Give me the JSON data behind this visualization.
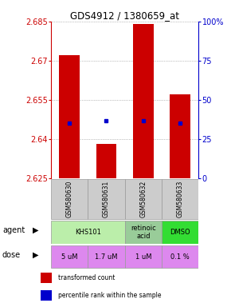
{
  "title": "GDS4912 / 1380659_at",
  "samples": [
    "GSM580630",
    "GSM580631",
    "GSM580632",
    "GSM580633"
  ],
  "bar_values": [
    2.672,
    2.638,
    2.684,
    2.657
  ],
  "bar_base": 2.625,
  "percentile_values": [
    2.646,
    2.647,
    2.647,
    2.646
  ],
  "ylim_left": [
    2.625,
    2.685
  ],
  "yticks_left": [
    2.625,
    2.64,
    2.655,
    2.67,
    2.685
  ],
  "yticks_right": [
    0,
    25,
    50,
    75,
    100
  ],
  "ytick_labels_left": [
    "2.625",
    "2.64",
    "2.655",
    "2.67",
    "2.685"
  ],
  "ytick_labels_right": [
    "0",
    "25",
    "50",
    "75",
    "100%"
  ],
  "bar_color": "#cc0000",
  "dot_color": "#0000cc",
  "dose_labels": [
    "5 uM",
    "1.7 uM",
    "1 uM",
    "0.1 %"
  ],
  "dose_color": "#dd88ee",
  "sample_bg_color": "#cccccc",
  "legend_red_label": "transformed count",
  "legend_blue_label": "percentile rank within the sample",
  "left_axis_color": "#cc0000",
  "right_axis_color": "#0000cc",
  "grid_color": "#888888",
  "agent_merged_label": "KHS101",
  "agent_merged_color": "#bbeeaa",
  "agent_retinoic_color": "#99cc99",
  "agent_retinoic_label": "retinoic\nacid",
  "agent_dmso_color": "#33dd33",
  "agent_dmso_label": "DMSO"
}
